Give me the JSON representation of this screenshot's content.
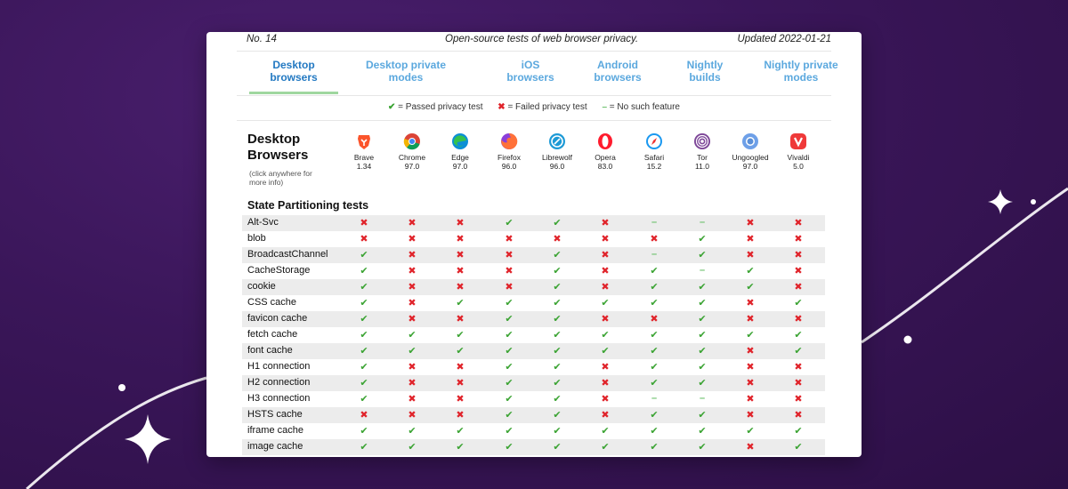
{
  "header": {
    "number": "No. 14",
    "description": "Open-source tests of web browser privacy.",
    "updated": "Updated 2022-01-21"
  },
  "tabs": [
    {
      "line1": "Desktop",
      "line2": "browsers",
      "active": true
    },
    {
      "line1": "Desktop private",
      "line2": "modes",
      "active": false
    },
    {
      "line1": "iOS",
      "line2": "browsers",
      "active": false
    },
    {
      "line1": "Android",
      "line2": "browsers",
      "active": false
    },
    {
      "line1": "Nightly",
      "line2": "builds",
      "active": false
    },
    {
      "line1": "Nightly private",
      "line2": "modes",
      "active": false
    }
  ],
  "legend": {
    "passed": "= Passed privacy test",
    "failed": "= Failed privacy test",
    "none": "= No such feature"
  },
  "section": {
    "title_line1": "Desktop",
    "title_line2": "Browsers",
    "note_line1": "(click anywhere for",
    "note_line2": "more info)"
  },
  "browsers": [
    {
      "name": "Brave",
      "version": "1.34",
      "icon": "brave-icon",
      "color": "#fb542b"
    },
    {
      "name": "Chrome",
      "version": "97.0",
      "icon": "chrome-icon",
      "color": "#4285f4"
    },
    {
      "name": "Edge",
      "version": "97.0",
      "icon": "edge-icon",
      "color": "#0c8fd6"
    },
    {
      "name": "Firefox",
      "version": "96.0",
      "icon": "firefox-icon",
      "color": "#ff7139"
    },
    {
      "name": "Librewolf",
      "version": "96.0",
      "icon": "librewolf-icon",
      "color": "#1d9ad6"
    },
    {
      "name": "Opera",
      "version": "83.0",
      "icon": "opera-icon",
      "color": "#ff1b2d"
    },
    {
      "name": "Safari",
      "version": "15.2",
      "icon": "safari-icon",
      "color": "#1a98f0"
    },
    {
      "name": "Tor",
      "version": "11.0",
      "icon": "tor-icon",
      "color": "#7d4698"
    },
    {
      "name": "Ungoogled",
      "version": "97.0",
      "icon": "ungoogled-icon",
      "color": "#5a8fd8"
    },
    {
      "name": "Vivaldi",
      "version": "5.0",
      "icon": "vivaldi-icon",
      "color": "#ef3939"
    }
  ],
  "group_title": "State Partitioning tests",
  "tests": [
    {
      "name": "Alt-Svc",
      "results": [
        "x",
        "x",
        "x",
        "v",
        "v",
        "x",
        "-",
        "-",
        "x",
        "x"
      ]
    },
    {
      "name": "blob",
      "results": [
        "x",
        "x",
        "x",
        "x",
        "x",
        "x",
        "x",
        "v",
        "x",
        "x"
      ]
    },
    {
      "name": "BroadcastChannel",
      "results": [
        "v",
        "x",
        "x",
        "x",
        "v",
        "x",
        "-",
        "v",
        "x",
        "x"
      ]
    },
    {
      "name": "CacheStorage",
      "results": [
        "v",
        "x",
        "x",
        "x",
        "v",
        "x",
        "v",
        "-",
        "v",
        "x"
      ]
    },
    {
      "name": "cookie",
      "results": [
        "v",
        "x",
        "x",
        "x",
        "v",
        "x",
        "v",
        "v",
        "v",
        "x"
      ]
    },
    {
      "name": "CSS cache",
      "results": [
        "v",
        "x",
        "v",
        "v",
        "v",
        "v",
        "v",
        "v",
        "x",
        "v"
      ]
    },
    {
      "name": "favicon cache",
      "results": [
        "v",
        "x",
        "x",
        "v",
        "v",
        "x",
        "x",
        "v",
        "x",
        "x"
      ]
    },
    {
      "name": "fetch cache",
      "results": [
        "v",
        "v",
        "v",
        "v",
        "v",
        "v",
        "v",
        "v",
        "v",
        "v"
      ]
    },
    {
      "name": "font cache",
      "results": [
        "v",
        "v",
        "v",
        "v",
        "v",
        "v",
        "v",
        "v",
        "x",
        "v"
      ]
    },
    {
      "name": "H1 connection",
      "results": [
        "v",
        "x",
        "x",
        "v",
        "v",
        "x",
        "v",
        "v",
        "x",
        "x"
      ]
    },
    {
      "name": "H2 connection",
      "results": [
        "v",
        "x",
        "x",
        "v",
        "v",
        "x",
        "v",
        "v",
        "x",
        "x"
      ]
    },
    {
      "name": "H3 connection",
      "results": [
        "v",
        "x",
        "x",
        "v",
        "v",
        "x",
        "-",
        "-",
        "x",
        "x"
      ]
    },
    {
      "name": "HSTS cache",
      "results": [
        "x",
        "x",
        "x",
        "v",
        "v",
        "x",
        "v",
        "v",
        "x",
        "x"
      ]
    },
    {
      "name": "iframe cache",
      "results": [
        "v",
        "v",
        "v",
        "v",
        "v",
        "v",
        "v",
        "v",
        "v",
        "v"
      ]
    },
    {
      "name": "image cache",
      "results": [
        "v",
        "v",
        "v",
        "v",
        "v",
        "v",
        "v",
        "v",
        "x",
        "v"
      ]
    }
  ],
  "colors": {
    "passed": "#3aa332",
    "failed": "#e0242b",
    "none": "#6cc16c",
    "tab_active": "#2379c2",
    "tab_inactive": "#5ba8de",
    "tab_underline": "#9fd79f"
  }
}
